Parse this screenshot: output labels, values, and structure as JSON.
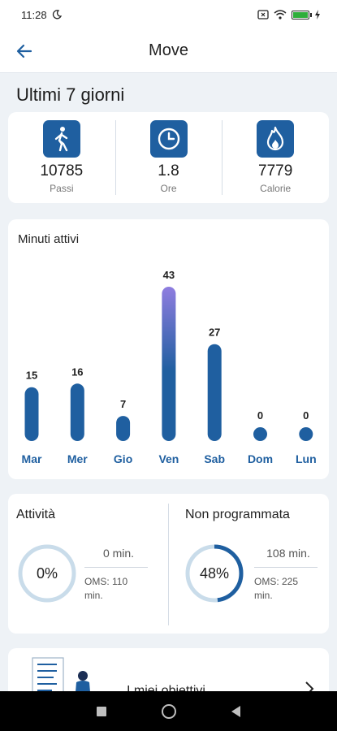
{
  "status_bar": {
    "time": "11:28"
  },
  "app_bar": {
    "title": "Move"
  },
  "section_title": "Ultimi 7 giorni",
  "summary": [
    {
      "value": "10785",
      "label": "Passi",
      "icon": "walking-person-icon"
    },
    {
      "value": "1.8",
      "label": "Ore",
      "icon": "clock-icon"
    },
    {
      "value": "7779",
      "label": "Calorie",
      "icon": "flame-icon"
    }
  ],
  "chart_data": {
    "type": "bar",
    "title": "Minuti attivi",
    "categories": [
      "Mar",
      "Mer",
      "Gio",
      "Ven",
      "Sab",
      "Dom",
      "Lun"
    ],
    "values": [
      15,
      16,
      7,
      43,
      27,
      0,
      0
    ],
    "colors": {
      "bar": "#1f5fa0",
      "bar_top": "#8f7de0",
      "label": "#1f5fa0"
    }
  },
  "activity": {
    "title": "Attività",
    "percent_label": "0%",
    "percent": 0,
    "minutes": "0 min.",
    "oms": "OMS: 110\nmin."
  },
  "unscheduled": {
    "title": "Non programmata",
    "percent_label": "48%",
    "percent": 48,
    "minutes": "108 min.",
    "oms": "OMS: 225\nmin."
  },
  "goals": {
    "label": "I miei obiettivi"
  },
  "colors": {
    "accent": "#1f5fa0",
    "ring_track": "#c9dcea",
    "background": "#eef2f6"
  }
}
